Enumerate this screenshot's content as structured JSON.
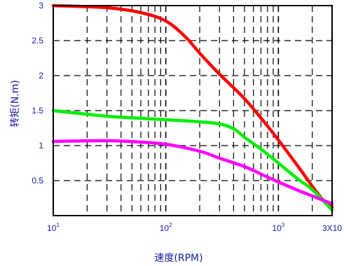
{
  "chart_data": {
    "type": "line",
    "title": "",
    "xlabel": "速度(RPM)",
    "ylabel": "转矩(N.m)",
    "x_scale": "log",
    "xlim": [
      10,
      3000
    ],
    "ylim": [
      0,
      3
    ],
    "grid": true,
    "legend": "none",
    "x_ticks": [
      {
        "value": 10,
        "base": "10",
        "exp": "1"
      },
      {
        "value": 100,
        "base": "10",
        "exp": "2"
      },
      {
        "value": 1000,
        "base": "10",
        "exp": "3"
      },
      {
        "value": 3000,
        "base": "3X10",
        "exp": ""
      }
    ],
    "y_ticks": [
      {
        "value": 0.5,
        "label": "0.5"
      },
      {
        "value": 1,
        "label": "1"
      },
      {
        "value": 1.5,
        "label": "1.5"
      },
      {
        "value": 2,
        "label": "2"
      },
      {
        "value": 2.5,
        "label": "2.5"
      },
      {
        "value": 3,
        "label": "3"
      }
    ],
    "series": [
      {
        "color": "#ff0000",
        "points": [
          [
            10,
            3.0
          ],
          [
            30,
            2.97
          ],
          [
            60,
            2.9
          ],
          [
            100,
            2.78
          ],
          [
            150,
            2.55
          ],
          [
            200,
            2.32
          ],
          [
            300,
            2.02
          ],
          [
            500,
            1.67
          ],
          [
            800,
            1.28
          ],
          [
            1000,
            1.08
          ],
          [
            1500,
            0.7
          ],
          [
            2000,
            0.42
          ],
          [
            2500,
            0.22
          ],
          [
            3000,
            0.12
          ]
        ]
      },
      {
        "color": "#00ee00",
        "points": [
          [
            10,
            1.5
          ],
          [
            30,
            1.42
          ],
          [
            60,
            1.39
          ],
          [
            100,
            1.37
          ],
          [
            200,
            1.34
          ],
          [
            300,
            1.31
          ],
          [
            400,
            1.24
          ],
          [
            500,
            1.12
          ],
          [
            700,
            0.95
          ],
          [
            1000,
            0.75
          ],
          [
            1500,
            0.52
          ],
          [
            2000,
            0.37
          ],
          [
            3000,
            0.08
          ]
        ]
      },
      {
        "color": "#ff00ff",
        "points": [
          [
            10,
            1.06
          ],
          [
            30,
            1.07
          ],
          [
            60,
            1.05
          ],
          [
            100,
            1.02
          ],
          [
            200,
            0.92
          ],
          [
            300,
            0.82
          ],
          [
            500,
            0.7
          ],
          [
            800,
            0.55
          ],
          [
            1000,
            0.48
          ],
          [
            1500,
            0.36
          ],
          [
            2000,
            0.28
          ],
          [
            3000,
            0.17
          ]
        ]
      }
    ]
  }
}
